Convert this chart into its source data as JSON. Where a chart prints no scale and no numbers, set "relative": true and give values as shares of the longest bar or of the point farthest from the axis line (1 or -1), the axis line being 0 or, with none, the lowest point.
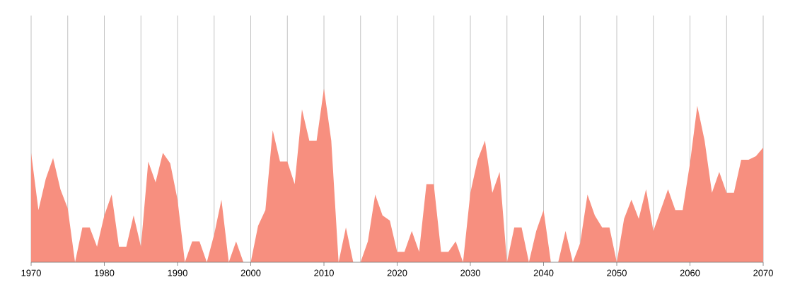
{
  "chart_data": {
    "type": "area",
    "relative": true,
    "color": "#f78f7f",
    "grid": true,
    "x": [
      1970,
      1971,
      1972,
      1973,
      1974,
      1975,
      1976,
      1977,
      1978,
      1979,
      1980,
      1981,
      1982,
      1983,
      1984,
      1985,
      1986,
      1987,
      1988,
      1989,
      1990,
      1991,
      1992,
      1993,
      1994,
      1995,
      1996,
      1997,
      1998,
      1999,
      2000,
      2001,
      2002,
      2003,
      2004,
      2005,
      2006,
      2007,
      2008,
      2009,
      2010,
      2011,
      2012,
      2013,
      2014,
      2015,
      2016,
      2017,
      2018,
      2019,
      2020,
      2021,
      2022,
      2023,
      2024,
      2025,
      2026,
      2027,
      2028,
      2029,
      2030,
      2031,
      2032,
      2033,
      2034,
      2035,
      2036,
      2037,
      2038,
      2039,
      2040,
      2041,
      2042,
      2043,
      2044,
      2045,
      2046,
      2047,
      2048,
      2049,
      2050,
      2051,
      2052,
      2053,
      2054,
      2055,
      2056,
      2057,
      2058,
      2059,
      2060,
      2061,
      2062,
      2063,
      2064,
      2065,
      2066,
      2067,
      2068,
      2069,
      2070
    ],
    "values": [
      0.63,
      0.3,
      0.48,
      0.6,
      0.42,
      0.31,
      0,
      0.2,
      0.2,
      0.09,
      0.27,
      0.39,
      0.09,
      0.09,
      0.27,
      0.09,
      0.58,
      0.46,
      0.63,
      0.57,
      0.36,
      0,
      0.12,
      0.12,
      0,
      0.16,
      0.36,
      0,
      0.12,
      0,
      0,
      0.21,
      0.3,
      0.76,
      0.58,
      0.58,
      0.45,
      0.88,
      0.7,
      0.7,
      1,
      0.7,
      0,
      0.2,
      0,
      0,
      0.12,
      0.39,
      0.27,
      0.24,
      0.06,
      0.06,
      0.18,
      0.06,
      0.45,
      0.45,
      0.06,
      0.06,
      0.12,
      0,
      0.4,
      0.59,
      0.7,
      0.4,
      0.52,
      0,
      0.2,
      0.2,
      0,
      0.18,
      0.3,
      0,
      0,
      0.18,
      0,
      0.11,
      0.39,
      0.27,
      0.2,
      0.2,
      0,
      0.25,
      0.36,
      0.25,
      0.42,
      0.18,
      0.3,
      0.42,
      0.3,
      0.3,
      0.57,
      0.9,
      0.7,
      0.4,
      0.52,
      0.4,
      0.4,
      0.59,
      0.59,
      0.61,
      0.66
    ],
    "xlim": [
      1970,
      2070
    ],
    "xticks": [
      1970,
      1980,
      1990,
      2000,
      2010,
      2020,
      2030,
      2040,
      2050,
      2060,
      2070
    ]
  }
}
